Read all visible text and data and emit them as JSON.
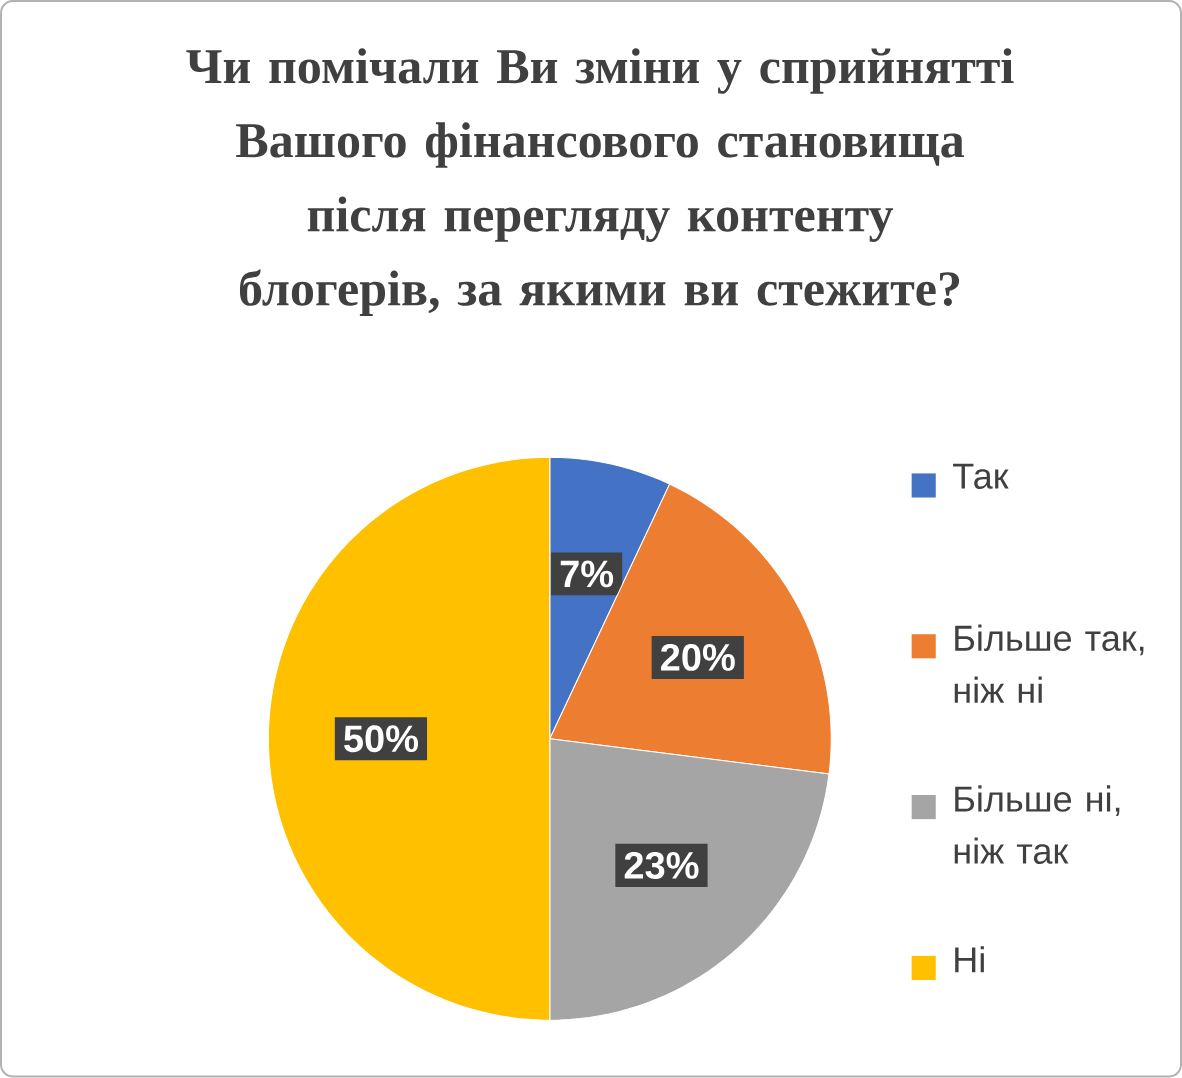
{
  "chart_data": {
    "type": "pie",
    "title": "Чи помічали Ви зміни у сприйнятті Вашого фінансового становища після перегляду контенту блогерів, за якими ви стежите?",
    "categories": [
      "Так",
      "Більше так, ніж ні",
      "Більше ні, ніж так",
      "Ні"
    ],
    "values": [
      7,
      20,
      23,
      50
    ],
    "value_labels": [
      "7%",
      "20%",
      "23%",
      "50%"
    ],
    "colors": [
      "#4472c4",
      "#ed7d31",
      "#a5a5a5",
      "#ffc000"
    ],
    "legend": "right"
  }
}
